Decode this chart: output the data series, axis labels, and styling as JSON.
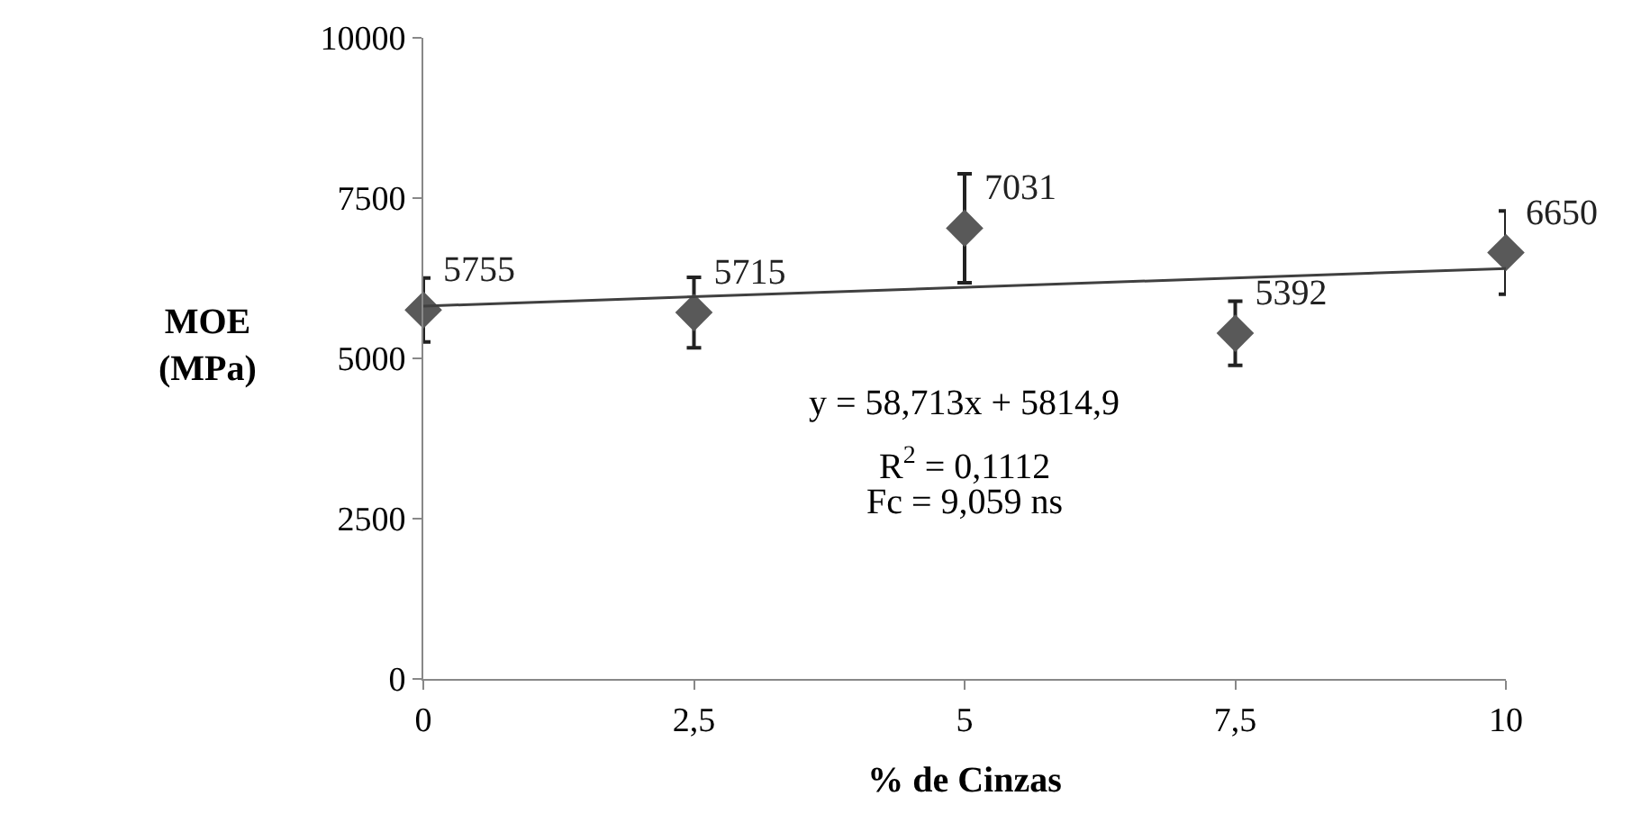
{
  "chart_data": {
    "type": "scatter",
    "xlabel": "% de Cinzas",
    "ylabel": "MOE (MPa)",
    "x": [
      0,
      2.5,
      5,
      7.5,
      10
    ],
    "series": [
      {
        "color": "#595959",
        "values": [
          5755,
          5715,
          7031,
          5392,
          6650
        ],
        "value_labels": [
          "5755",
          "5715",
          "7031",
          "5392",
          "6650"
        ],
        "errors": [
          500,
          550,
          850,
          500,
          650
        ],
        "marker": "diamond"
      },
      {
        "type": "line",
        "color": "#404040",
        "x": [
          0,
          10
        ],
        "values": [
          5815,
          6402
        ],
        "marker": "none",
        "line_style": "solid"
      }
    ],
    "xlim": [
      0,
      10
    ],
    "xticks": [
      0,
      {
        "value": 2.5,
        "label": "2,5"
      },
      5,
      {
        "value": 7.5,
        "label": "7,5"
      },
      10
    ],
    "ylim": [
      0,
      10000
    ],
    "yticks": [
      0,
      2500,
      5000,
      7500,
      10000
    ],
    "legend": false,
    "annotations": [
      "y = 58,713x + 5814,9",
      "R$^{2}$ = 0,1112",
      "Fc = 9,059 ns"
    ]
  }
}
